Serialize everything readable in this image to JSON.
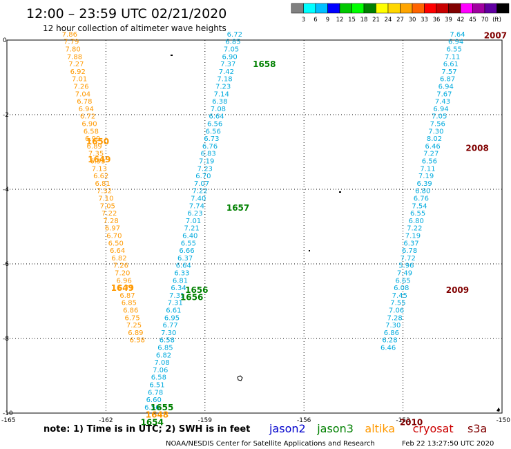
{
  "header": {
    "title": "12:00 – 23:59 UTC 02/21/2020",
    "subtitle": "12 hour collection of altimeter wave heights"
  },
  "colorbar": {
    "colors": [
      "#808080",
      "#00ffff",
      "#00bfff",
      "#0000ff",
      "#00c800",
      "#00ff00",
      "#008000",
      "#ffff00",
      "#ffd700",
      "#ffa500",
      "#ff6400",
      "#ff0000",
      "#c80000",
      "#800000",
      "#ff00ff",
      "#a000a0",
      "#6000a0",
      "#000000"
    ],
    "labels": [
      "3",
      "6",
      "9",
      "12",
      "15",
      "18",
      "21",
      "24",
      "27",
      "30",
      "33",
      "36",
      "39",
      "42",
      "45",
      "70",
      "(ft)"
    ]
  },
  "axes": {
    "x_ticks": [
      "-165",
      "-162",
      "-159",
      "-156",
      "-153",
      "-150"
    ],
    "y_ticks": [
      "0",
      "-2",
      "-4",
      "-6",
      "-8",
      "-10"
    ]
  },
  "chart_data": {
    "type": "scatter",
    "xlim": [
      -165,
      -150
    ],
    "ylim": [
      -10,
      0
    ],
    "grid": true,
    "units": "ft",
    "tracks": [
      {
        "satellite": "altika",
        "color": "#ff9900",
        "points": [
          {
            "x": -163.1,
            "y": 0.15,
            "v": "7.86"
          },
          {
            "x": -163.05,
            "y": -0.05,
            "v": "7.79"
          },
          {
            "x": -163.0,
            "y": -0.25,
            "v": "7.80"
          },
          {
            "x": -162.95,
            "y": -0.45,
            "v": "7.88"
          },
          {
            "x": -162.9,
            "y": -0.65,
            "v": "7.27"
          },
          {
            "x": -162.85,
            "y": -0.85,
            "v": "6.92"
          },
          {
            "x": -162.8,
            "y": -1.05,
            "v": "7.01"
          },
          {
            "x": -162.75,
            "y": -1.25,
            "v": "7.26"
          },
          {
            "x": -162.7,
            "y": -1.45,
            "v": "7.04"
          },
          {
            "x": -162.65,
            "y": -1.65,
            "v": "6.78"
          },
          {
            "x": -162.6,
            "y": -1.85,
            "v": "6.94"
          },
          {
            "x": -162.55,
            "y": -2.05,
            "v": "6.72"
          },
          {
            "x": -162.5,
            "y": -2.25,
            "v": "6.90"
          },
          {
            "x": -162.45,
            "y": -2.45,
            "v": "6.58"
          },
          {
            "x": -162.4,
            "y": -2.65,
            "v": "6.99"
          },
          {
            "x": -162.35,
            "y": -2.85,
            "v": "6.89"
          },
          {
            "x": -162.3,
            "y": -3.05,
            "v": "7.35"
          },
          {
            "x": -162.25,
            "y": -3.25,
            "v": "6.93"
          },
          {
            "x": -162.2,
            "y": -3.45,
            "v": "7.13"
          },
          {
            "x": -162.15,
            "y": -3.65,
            "v": "6.62"
          },
          {
            "x": -162.1,
            "y": -3.85,
            "v": "6.81"
          },
          {
            "x": -162.05,
            "y": -4.05,
            "v": "7.32"
          },
          {
            "x": -162.0,
            "y": -4.25,
            "v": "7.10"
          },
          {
            "x": -161.95,
            "y": -4.45,
            "v": "7.05"
          },
          {
            "x": -161.9,
            "y": -4.65,
            "v": "7.22"
          },
          {
            "x": -161.85,
            "y": -4.85,
            "v": "7.28"
          },
          {
            "x": -161.8,
            "y": -5.05,
            "v": "6.97"
          },
          {
            "x": -161.75,
            "y": -5.25,
            "v": "6.70"
          },
          {
            "x": -161.7,
            "y": -5.45,
            "v": "6.50"
          },
          {
            "x": -161.65,
            "y": -5.65,
            "v": "6.64"
          },
          {
            "x": -161.6,
            "y": -5.85,
            "v": "6.82"
          },
          {
            "x": -161.55,
            "y": -6.05,
            "v": "7.26"
          },
          {
            "x": -161.5,
            "y": -6.25,
            "v": "7.20"
          },
          {
            "x": -161.45,
            "y": -6.45,
            "v": "6.96"
          },
          {
            "x": -161.4,
            "y": -6.65,
            "v": "6.71"
          },
          {
            "x": -161.35,
            "y": -6.85,
            "v": "6.87"
          },
          {
            "x": -161.3,
            "y": -7.05,
            "v": "6.85"
          },
          {
            "x": -161.25,
            "y": -7.25,
            "v": "6.86"
          },
          {
            "x": -161.2,
            "y": -7.45,
            "v": "6.75"
          },
          {
            "x": -161.15,
            "y": -7.65,
            "v": "7.25"
          },
          {
            "x": -161.1,
            "y": -7.85,
            "v": "6.89"
          },
          {
            "x": -161.05,
            "y": -8.05,
            "v": "6.58"
          }
        ]
      },
      {
        "satellite": "jason3",
        "color": "#00aadd",
        "points": [
          {
            "x": -158.1,
            "y": 0.15,
            "v": "6.72"
          },
          {
            "x": -158.15,
            "y": -0.05,
            "v": "6.85"
          },
          {
            "x": -158.2,
            "y": -0.25,
            "v": "7.05"
          },
          {
            "x": -158.25,
            "y": -0.45,
            "v": "6.90"
          },
          {
            "x": -158.3,
            "y": -0.65,
            "v": "7.37"
          },
          {
            "x": -158.35,
            "y": -0.85,
            "v": "7.42"
          },
          {
            "x": -158.4,
            "y": -1.05,
            "v": "7.18"
          },
          {
            "x": -158.45,
            "y": -1.25,
            "v": "7.23"
          },
          {
            "x": -158.5,
            "y": -1.45,
            "v": "7.14"
          },
          {
            "x": -158.55,
            "y": -1.65,
            "v": "6.38"
          },
          {
            "x": -158.6,
            "y": -1.85,
            "v": "7.08"
          },
          {
            "x": -158.65,
            "y": -2.05,
            "v": "6.64"
          },
          {
            "x": -158.7,
            "y": -2.25,
            "v": "6.56"
          },
          {
            "x": -158.75,
            "y": -2.45,
            "v": "6.56"
          },
          {
            "x": -158.8,
            "y": -2.65,
            "v": "6.73"
          },
          {
            "x": -158.85,
            "y": -2.85,
            "v": "6.76"
          },
          {
            "x": -158.9,
            "y": -3.05,
            "v": "6.83"
          },
          {
            "x": -158.95,
            "y": -3.25,
            "v": "7.19"
          },
          {
            "x": -159.0,
            "y": -3.45,
            "v": "7.23"
          },
          {
            "x": -159.05,
            "y": -3.65,
            "v": "6.70"
          },
          {
            "x": -159.1,
            "y": -3.85,
            "v": "7.07"
          },
          {
            "x": -159.15,
            "y": -4.05,
            "v": "7.22"
          },
          {
            "x": -159.2,
            "y": -4.25,
            "v": "7.40"
          },
          {
            "x": -159.25,
            "y": -4.45,
            "v": "7.74"
          },
          {
            "x": -159.3,
            "y": -4.65,
            "v": "6.23"
          },
          {
            "x": -159.35,
            "y": -4.85,
            "v": "7.01"
          },
          {
            "x": -159.4,
            "y": -5.05,
            "v": "7.21"
          },
          {
            "x": -159.45,
            "y": -5.25,
            "v": "6.40"
          },
          {
            "x": -159.5,
            "y": -5.45,
            "v": "6.55"
          },
          {
            "x": -159.55,
            "y": -5.65,
            "v": "6.66"
          },
          {
            "x": -159.6,
            "y": -5.85,
            "v": "6.37"
          },
          {
            "x": -159.65,
            "y": -6.05,
            "v": "6.64"
          },
          {
            "x": -159.7,
            "y": -6.25,
            "v": "6.33"
          },
          {
            "x": -159.75,
            "y": -6.45,
            "v": "6.81"
          },
          {
            "x": -159.8,
            "y": -6.65,
            "v": "6.34"
          },
          {
            "x": -159.85,
            "y": -6.85,
            "v": "7.31"
          },
          {
            "x": -159.9,
            "y": -7.05,
            "v": "7.31"
          },
          {
            "x": -159.95,
            "y": -7.25,
            "v": "6.61"
          },
          {
            "x": -160.0,
            "y": -7.45,
            "v": "6.95"
          },
          {
            "x": -160.05,
            "y": -7.65,
            "v": "6.77"
          },
          {
            "x": -160.1,
            "y": -7.85,
            "v": "7.30"
          },
          {
            "x": -160.15,
            "y": -8.05,
            "v": "6.58"
          },
          {
            "x": -160.2,
            "y": -8.25,
            "v": "6.85"
          },
          {
            "x": -160.25,
            "y": -8.45,
            "v": "6.82"
          },
          {
            "x": -160.3,
            "y": -8.65,
            "v": "7.08"
          },
          {
            "x": -160.35,
            "y": -8.85,
            "v": "7.06"
          },
          {
            "x": -160.4,
            "y": -9.05,
            "v": "6.58"
          },
          {
            "x": -160.45,
            "y": -9.25,
            "v": "6.51"
          },
          {
            "x": -160.5,
            "y": -9.45,
            "v": "6.78"
          },
          {
            "x": -160.55,
            "y": -9.65,
            "v": "6.60"
          },
          {
            "x": -160.6,
            "y": -9.85,
            "v": "6.56"
          }
        ]
      },
      {
        "satellite": "jason3",
        "color": "#00aadd",
        "points": [
          {
            "x": -151.35,
            "y": 0.15,
            "v": "7.64"
          },
          {
            "x": -151.4,
            "y": -0.05,
            "v": "6.94"
          },
          {
            "x": -151.45,
            "y": -0.25,
            "v": "6.55"
          },
          {
            "x": -151.5,
            "y": -0.45,
            "v": "7.11"
          },
          {
            "x": -151.55,
            "y": -0.65,
            "v": "6.61"
          },
          {
            "x": -151.6,
            "y": -0.85,
            "v": "7.57"
          },
          {
            "x": -151.65,
            "y": -1.05,
            "v": "6.87"
          },
          {
            "x": -151.7,
            "y": -1.25,
            "v": "6.94"
          },
          {
            "x": -151.75,
            "y": -1.45,
            "v": "7.67"
          },
          {
            "x": -151.8,
            "y": -1.65,
            "v": "7.43"
          },
          {
            "x": -151.85,
            "y": -1.85,
            "v": "6.94"
          },
          {
            "x": -151.9,
            "y": -2.05,
            "v": "7.05"
          },
          {
            "x": -151.95,
            "y": -2.25,
            "v": "7.56"
          },
          {
            "x": -152.0,
            "y": -2.45,
            "v": "7.30"
          },
          {
            "x": -152.05,
            "y": -2.65,
            "v": "8.02"
          },
          {
            "x": -152.1,
            "y": -2.85,
            "v": "6.46"
          },
          {
            "x": -152.15,
            "y": -3.05,
            "v": "7.27"
          },
          {
            "x": -152.2,
            "y": -3.25,
            "v": "6.56"
          },
          {
            "x": -152.25,
            "y": -3.45,
            "v": "7.11"
          },
          {
            "x": -152.3,
            "y": -3.65,
            "v": "7.19"
          },
          {
            "x": -152.35,
            "y": -3.85,
            "v": "6.39"
          },
          {
            "x": -152.4,
            "y": -4.05,
            "v": "6.80"
          },
          {
            "x": -152.45,
            "y": -4.25,
            "v": "6.76"
          },
          {
            "x": -152.5,
            "y": -4.45,
            "v": "7.54"
          },
          {
            "x": -152.55,
            "y": -4.65,
            "v": "6.55"
          },
          {
            "x": -152.6,
            "y": -4.85,
            "v": "6.80"
          },
          {
            "x": -152.65,
            "y": -5.05,
            "v": "7.22"
          },
          {
            "x": -152.7,
            "y": -5.25,
            "v": "7.19"
          },
          {
            "x": -152.75,
            "y": -5.45,
            "v": "6.37"
          },
          {
            "x": -152.8,
            "y": -5.65,
            "v": "6.78"
          },
          {
            "x": -152.85,
            "y": -5.85,
            "v": "7.72"
          },
          {
            "x": -152.9,
            "y": -6.05,
            "v": "5.96"
          },
          {
            "x": -152.95,
            "y": -6.25,
            "v": "7.49"
          },
          {
            "x": -153.0,
            "y": -6.45,
            "v": "6.65"
          },
          {
            "x": -153.05,
            "y": -6.65,
            "v": "6.08"
          },
          {
            "x": -153.1,
            "y": -6.85,
            "v": "7.45"
          },
          {
            "x": -153.15,
            "y": -7.05,
            "v": "7.55"
          },
          {
            "x": -153.2,
            "y": -7.25,
            "v": "7.06"
          },
          {
            "x": -153.25,
            "y": -7.45,
            "v": "7.28"
          },
          {
            "x": -153.3,
            "y": -7.65,
            "v": "7.30"
          },
          {
            "x": -153.35,
            "y": -7.85,
            "v": "6.86"
          },
          {
            "x": -153.4,
            "y": -8.05,
            "v": "6.28"
          },
          {
            "x": -153.45,
            "y": -8.25,
            "v": "6.46"
          }
        ]
      }
    ],
    "pass_labels": [
      {
        "text": "2007",
        "x": -150.55,
        "y": 0.12,
        "color": "#800000"
      },
      {
        "text": "1658",
        "x": -157.55,
        "y": -0.65,
        "color": "#008000"
      },
      {
        "text": "1650",
        "x": -162.6,
        "y": -2.72,
        "color": "#ff9900"
      },
      {
        "text": "1649",
        "x": -162.55,
        "y": -3.2,
        "color": "#ff9900"
      },
      {
        "text": "2008",
        "x": -151.1,
        "y": -2.9,
        "color": "#800000"
      },
      {
        "text": "1657",
        "x": -158.35,
        "y": -4.5,
        "color": "#008000"
      },
      {
        "text": "1649",
        "x": -161.85,
        "y": -6.65,
        "color": "#ff9900"
      },
      {
        "text": "2009",
        "x": -151.7,
        "y": -6.7,
        "color": "#800000"
      },
      {
        "text": "1656",
        "x": -159.6,
        "y": -6.7,
        "color": "#008000"
      },
      {
        "text": "1656",
        "x": -159.75,
        "y": -6.9,
        "color": "#008000"
      },
      {
        "text": "1655",
        "x": -160.65,
        "y": -9.85,
        "color": "#008000"
      },
      {
        "text": "1648",
        "x": -160.8,
        "y": -10.05,
        "color": "#ff9900"
      },
      {
        "text": "1654",
        "x": -160.95,
        "y": -10.25,
        "color": "#008000"
      },
      {
        "text": "2010",
        "x": -153.1,
        "y": -10.25,
        "color": "#800000"
      }
    ]
  },
  "legend": {
    "note": "note: 1) Time is in UTC; 2) SWH is in feet",
    "satellites": [
      {
        "name": "jason2",
        "color": "#0000cc"
      },
      {
        "name": "jason3",
        "color": "#008000"
      },
      {
        "name": "altika",
        "color": "#ff9900"
      },
      {
        "name": "cryosat",
        "color": "#cc0000"
      },
      {
        "name": "s3a",
        "color": "#800000"
      }
    ]
  },
  "footer": {
    "credit": "NOAA/NESDIS Center for Satellite Applications and Research",
    "timestamp": "Feb 22 13:27:50 UTC 2020"
  }
}
